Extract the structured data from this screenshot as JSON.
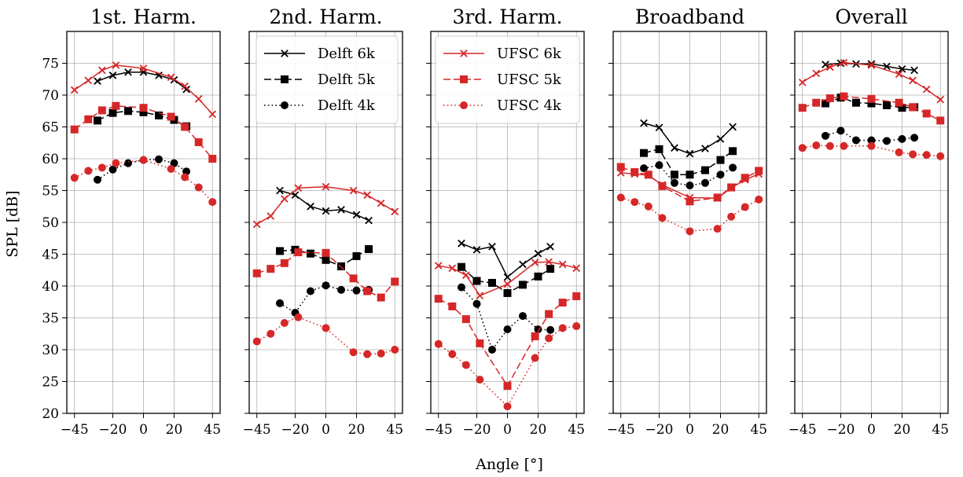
{
  "figure": {
    "ylabel": "SPL [dB]",
    "xlabel": "Angle [°]",
    "colors": {
      "delft": "#000000",
      "ufsc": "#d62728"
    }
  },
  "legends": {
    "delft": {
      "panel": 1,
      "placement": "top-right",
      "entries": [
        "Delft 6k",
        "Delft 5k",
        "Delft 4k"
      ]
    },
    "ufsc": {
      "panel": 2,
      "placement": "top-right",
      "entries": [
        "UFSC 6k",
        "UFSC 5k",
        "UFSC 4k"
      ]
    }
  },
  "chart_data": [
    {
      "type": "line",
      "title": "1st. Harm.",
      "xlim": [
        -50,
        50
      ],
      "ylim": [
        20,
        80
      ],
      "xticks": [
        -45,
        -20,
        0,
        20,
        45
      ],
      "yticks": [
        20,
        25,
        30,
        35,
        40,
        45,
        50,
        55,
        60,
        65,
        70,
        75
      ],
      "grid": true,
      "series": [
        {
          "name": "Delft 6k",
          "color": "#000000",
          "linestyle": "solid",
          "marker": "x",
          "x": [
            -30,
            -20,
            -10,
            0,
            10,
            20,
            28
          ],
          "y": [
            72.2,
            73.1,
            73.6,
            73.6,
            73.1,
            72.4,
            70.9
          ]
        },
        {
          "name": "Delft 5k",
          "color": "#000000",
          "linestyle": "dashed",
          "marker": "square",
          "x": [
            -30,
            -20,
            -10,
            0,
            10,
            20,
            28
          ],
          "y": [
            66.0,
            67.2,
            67.5,
            67.3,
            66.8,
            66.1,
            65.1
          ]
        },
        {
          "name": "Delft 4k",
          "color": "#000000",
          "linestyle": "dotted",
          "marker": "circle",
          "x": [
            -30,
            -20,
            -10,
            0,
            10,
            20,
            28
          ],
          "y": [
            56.7,
            58.3,
            59.3,
            59.8,
            59.9,
            59.3,
            58.0
          ]
        },
        {
          "name": "UFSC 6k",
          "color": "#d62728",
          "linestyle": "solid",
          "marker": "x",
          "x": [
            -45,
            -36,
            -27,
            -18,
            0,
            18,
            27,
            36,
            45
          ],
          "y": [
            70.8,
            72.3,
            73.9,
            74.7,
            74.2,
            72.8,
            71.4,
            69.4,
            67.0
          ]
        },
        {
          "name": "UFSC 5k",
          "color": "#d62728",
          "linestyle": "dashed",
          "marker": "square",
          "x": [
            -45,
            -36,
            -27,
            -18,
            0,
            18,
            27,
            36,
            45
          ],
          "y": [
            64.6,
            66.2,
            67.6,
            68.3,
            68.0,
            66.6,
            65.0,
            62.6,
            60.0
          ]
        },
        {
          "name": "UFSC 4k",
          "color": "#d62728",
          "linestyle": "dotted",
          "marker": "circle",
          "x": [
            -45,
            -36,
            -27,
            -18,
            0,
            18,
            27,
            36,
            45
          ],
          "y": [
            57.0,
            58.1,
            58.6,
            59.3,
            59.8,
            58.4,
            57.1,
            55.5,
            53.2
          ]
        }
      ]
    },
    {
      "type": "line",
      "title": "2nd. Harm.",
      "xlim": [
        -50,
        50
      ],
      "ylim": [
        20,
        80
      ],
      "xticks": [
        -45,
        -20,
        0,
        20,
        45
      ],
      "yticks": [
        20,
        25,
        30,
        35,
        40,
        45,
        50,
        55,
        60,
        65,
        70,
        75
      ],
      "grid": true,
      "series": [
        {
          "name": "Delft 6k",
          "color": "#000000",
          "linestyle": "solid",
          "marker": "x",
          "x": [
            -30,
            -20,
            -10,
            0,
            10,
            20,
            28
          ],
          "y": [
            55.0,
            54.3,
            52.5,
            51.8,
            52.0,
            51.2,
            50.3
          ]
        },
        {
          "name": "Delft 5k",
          "color": "#000000",
          "linestyle": "dashed",
          "marker": "square",
          "x": [
            -30,
            -20,
            -10,
            0,
            10,
            20,
            28
          ],
          "y": [
            45.5,
            45.7,
            45.1,
            44.1,
            43.1,
            44.7,
            45.8
          ]
        },
        {
          "name": "Delft 4k",
          "color": "#000000",
          "linestyle": "dotted",
          "marker": "circle",
          "x": [
            -30,
            -20,
            -10,
            0,
            10,
            20,
            28
          ],
          "y": [
            37.3,
            35.8,
            39.2,
            40.1,
            39.4,
            39.3,
            39.4
          ]
        },
        {
          "name": "UFSC 6k",
          "color": "#d62728",
          "linestyle": "solid",
          "marker": "x",
          "x": [
            -45,
            -36,
            -27,
            -18,
            0,
            18,
            27,
            36,
            45
          ],
          "y": [
            49.7,
            51.0,
            53.7,
            55.4,
            55.6,
            55.0,
            54.3,
            53.0,
            51.7
          ]
        },
        {
          "name": "UFSC 5k",
          "color": "#d62728",
          "linestyle": "dashed",
          "marker": "square",
          "x": [
            -45,
            -36,
            -27,
            -18,
            0,
            18,
            27,
            36,
            45
          ],
          "y": [
            42.0,
            42.7,
            43.6,
            45.3,
            45.2,
            41.2,
            39.2,
            38.2,
            40.7
          ]
        },
        {
          "name": "UFSC 4k",
          "color": "#d62728",
          "linestyle": "dotted",
          "marker": "circle",
          "x": [
            -45,
            -36,
            -27,
            -18,
            0,
            18,
            27,
            36,
            45
          ],
          "y": [
            31.3,
            32.5,
            34.2,
            35.1,
            33.4,
            29.6,
            29.3,
            29.4,
            30.0
          ]
        }
      ]
    },
    {
      "type": "line",
      "title": "3rd. Harm.",
      "xlim": [
        -50,
        50
      ],
      "ylim": [
        20,
        80
      ],
      "xticks": [
        -45,
        -20,
        0,
        20,
        45
      ],
      "yticks": [
        20,
        25,
        30,
        35,
        40,
        45,
        50,
        55,
        60,
        65,
        70,
        75
      ],
      "grid": true,
      "series": [
        {
          "name": "Delft 6k",
          "color": "#000000",
          "linestyle": "solid",
          "marker": "x",
          "x": [
            -30,
            -20,
            -10,
            0,
            10,
            20,
            28
          ],
          "y": [
            46.7,
            45.7,
            46.2,
            41.4,
            43.4,
            45.1,
            46.2
          ]
        },
        {
          "name": "Delft 5k",
          "color": "#000000",
          "linestyle": "dashed",
          "marker": "square",
          "x": [
            -30,
            -20,
            -10,
            0,
            10,
            20,
            28
          ],
          "y": [
            43.0,
            40.8,
            40.5,
            38.9,
            40.2,
            41.5,
            42.7
          ]
        },
        {
          "name": "Delft 4k",
          "color": "#000000",
          "linestyle": "dotted",
          "marker": "circle",
          "x": [
            -30,
            -20,
            -10,
            0,
            10,
            20,
            28
          ],
          "y": [
            39.8,
            37.2,
            30.0,
            33.2,
            35.3,
            33.2,
            33.1
          ]
        },
        {
          "name": "UFSC 6k",
          "color": "#d62728",
          "linestyle": "solid",
          "marker": "x",
          "x": [
            -45,
            -36,
            -27,
            -18,
            0,
            18,
            27,
            36,
            45
          ],
          "y": [
            43.2,
            42.8,
            41.7,
            38.5,
            40.3,
            43.7,
            43.8,
            43.4,
            42.8
          ]
        },
        {
          "name": "UFSC 5k",
          "color": "#d62728",
          "linestyle": "dashed",
          "marker": "square",
          "x": [
            -45,
            -36,
            -27,
            -18,
            0,
            18,
            27,
            36,
            45
          ],
          "y": [
            38.0,
            36.8,
            34.8,
            31.0,
            24.3,
            32.1,
            35.6,
            37.4,
            38.4
          ]
        },
        {
          "name": "UFSC 4k",
          "color": "#d62728",
          "linestyle": "dotted",
          "marker": "circle",
          "x": [
            -45,
            -36,
            -27,
            -18,
            0,
            18,
            27,
            36,
            45
          ],
          "y": [
            30.9,
            29.3,
            27.6,
            25.3,
            21.1,
            28.7,
            31.8,
            33.4,
            33.7
          ]
        }
      ]
    },
    {
      "type": "line",
      "title": "Broadband",
      "xlim": [
        -50,
        50
      ],
      "ylim": [
        20,
        80
      ],
      "xticks": [
        -45,
        -20,
        0,
        20,
        45
      ],
      "yticks": [
        20,
        25,
        30,
        35,
        40,
        45,
        50,
        55,
        60,
        65,
        70,
        75
      ],
      "grid": true,
      "series": [
        {
          "name": "Delft 6k",
          "color": "#000000",
          "linestyle": "solid",
          "marker": "x",
          "x": [
            -30,
            -20,
            -10,
            0,
            10,
            20,
            28
          ],
          "y": [
            65.6,
            64.9,
            61.7,
            60.8,
            61.6,
            63.1,
            65.0
          ]
        },
        {
          "name": "Delft 5k",
          "color": "#000000",
          "linestyle": "dashed",
          "marker": "square",
          "x": [
            -30,
            -20,
            -10,
            0,
            10,
            20,
            28
          ],
          "y": [
            60.9,
            61.5,
            57.5,
            57.5,
            58.2,
            59.8,
            61.2
          ]
        },
        {
          "name": "Delft 4k",
          "color": "#000000",
          "linestyle": "dotted",
          "marker": "circle",
          "x": [
            -30,
            -20,
            -10,
            0,
            10,
            20,
            28
          ],
          "y": [
            58.5,
            59.0,
            56.2,
            55.8,
            56.2,
            57.5,
            58.6
          ]
        },
        {
          "name": "UFSC 6k",
          "color": "#d62728",
          "linestyle": "solid",
          "marker": "x",
          "x": [
            -45,
            -36,
            -27,
            -18,
            0,
            18,
            27,
            36,
            45
          ],
          "y": [
            57.8,
            57.6,
            57.4,
            55.9,
            53.9,
            53.8,
            55.4,
            56.7,
            57.6
          ]
        },
        {
          "name": "UFSC 5k",
          "color": "#d62728",
          "linestyle": "dashed",
          "marker": "square",
          "x": [
            -45,
            -36,
            -27,
            -18,
            0,
            18,
            27,
            36,
            45
          ],
          "y": [
            58.7,
            57.9,
            57.5,
            55.7,
            53.3,
            53.9,
            55.5,
            57.0,
            58.1
          ]
        },
        {
          "name": "UFSC 4k",
          "color": "#d62728",
          "linestyle": "dotted",
          "marker": "circle",
          "x": [
            -45,
            -36,
            -27,
            -18,
            0,
            18,
            27,
            36,
            45
          ],
          "y": [
            53.9,
            53.2,
            52.5,
            50.7,
            48.6,
            49.0,
            50.9,
            52.4,
            53.6
          ]
        }
      ]
    },
    {
      "type": "line",
      "title": "Overall",
      "xlim": [
        -50,
        50
      ],
      "ylim": [
        20,
        80
      ],
      "xticks": [
        -45,
        -20,
        0,
        20,
        45
      ],
      "yticks": [
        20,
        25,
        30,
        35,
        40,
        45,
        50,
        55,
        60,
        65,
        70,
        75
      ],
      "grid": true,
      "series": [
        {
          "name": "Delft 6k",
          "color": "#000000",
          "linestyle": "solid",
          "marker": "x",
          "x": [
            -30,
            -20,
            -10,
            0,
            10,
            20,
            28
          ],
          "y": [
            74.8,
            75.0,
            74.9,
            74.9,
            74.5,
            74.1,
            73.9
          ]
        },
        {
          "name": "Delft 5k",
          "color": "#000000",
          "linestyle": "dashed",
          "marker": "square",
          "x": [
            -30,
            -20,
            -10,
            0,
            10,
            20,
            28
          ],
          "y": [
            68.7,
            69.6,
            68.8,
            68.7,
            68.4,
            68.0,
            68.1
          ]
        },
        {
          "name": "Delft 4k",
          "color": "#000000",
          "linestyle": "dotted",
          "marker": "circle",
          "x": [
            -30,
            -20,
            -10,
            0,
            10,
            20,
            28
          ],
          "y": [
            63.6,
            64.4,
            62.9,
            62.9,
            62.8,
            63.1,
            63.3
          ]
        },
        {
          "name": "UFSC 6k",
          "color": "#d62728",
          "linestyle": "solid",
          "marker": "x",
          "x": [
            -45,
            -36,
            -27,
            -18,
            0,
            18,
            27,
            36,
            45
          ],
          "y": [
            72.0,
            73.4,
            74.4,
            75.1,
            74.7,
            73.3,
            72.3,
            70.9,
            69.3
          ]
        },
        {
          "name": "UFSC 5k",
          "color": "#d62728",
          "linestyle": "dashed",
          "marker": "square",
          "x": [
            -45,
            -36,
            -27,
            -18,
            0,
            18,
            27,
            36,
            45
          ],
          "y": [
            68.0,
            68.8,
            69.5,
            69.8,
            69.4,
            68.8,
            68.1,
            67.1,
            66.0
          ]
        },
        {
          "name": "UFSC 4k",
          "color": "#d62728",
          "linestyle": "dotted",
          "marker": "circle",
          "x": [
            -45,
            -36,
            -27,
            -18,
            0,
            18,
            27,
            36,
            45
          ],
          "y": [
            61.7,
            62.1,
            62.0,
            62.0,
            62.0,
            61.0,
            60.7,
            60.6,
            60.4
          ]
        }
      ]
    }
  ]
}
